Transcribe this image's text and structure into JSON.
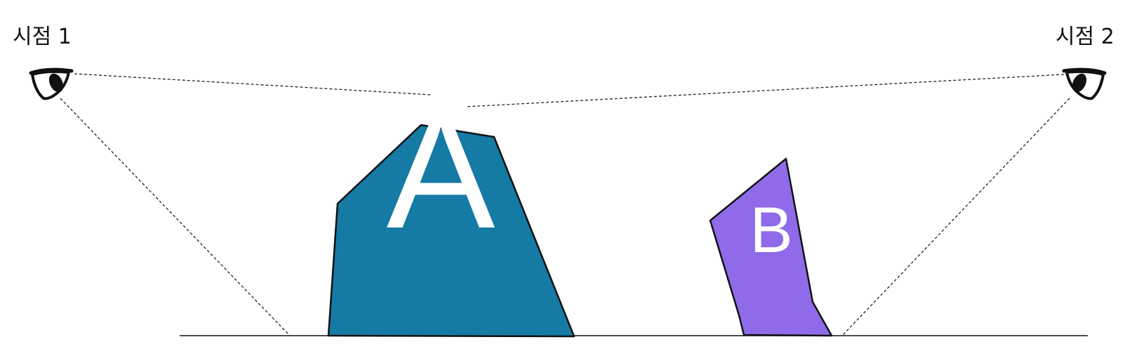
{
  "viewpoints": [
    {
      "label": "시점 1",
      "icon": "eye-icon"
    },
    {
      "label": "시점 2",
      "icon": "eye-icon"
    }
  ],
  "objects": [
    {
      "label": "A",
      "color": "#157aa4"
    },
    {
      "label": "B",
      "color": "#8f6bea"
    }
  ],
  "colors": {
    "line": "#111111",
    "background": "#ffffff"
  }
}
